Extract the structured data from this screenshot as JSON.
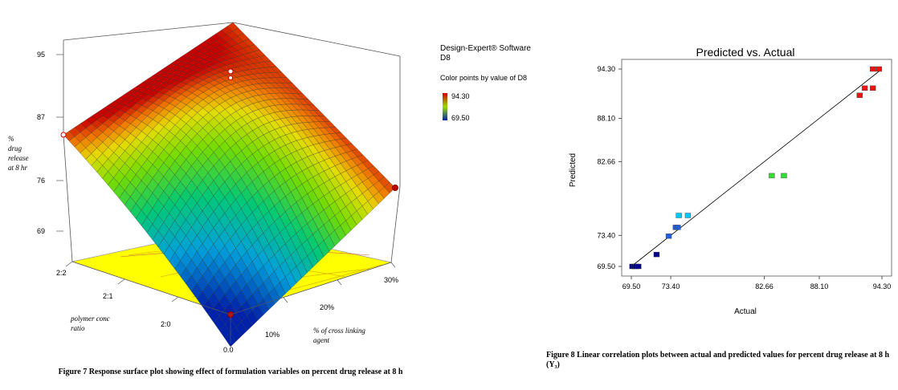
{
  "figure7": {
    "caption": "Figure 7 Response surface plot showing effect of formulation variables on percent drug release at 8 h",
    "software_label": "Design-Expert® Software",
    "response_name": "D8",
    "color_note": "Color points by value of D8",
    "color_max": "94.30",
    "color_min": "69.50",
    "colors": {
      "high": "#cc0000",
      "mid": "#7fd400",
      "low": "#0022aa",
      "floor": "#ffff00"
    },
    "z_axis": {
      "label": [
        "%",
        "drug",
        "release",
        "at 8 hr"
      ],
      "ticks": [
        "95",
        "87",
        "76",
        "69"
      ]
    },
    "x_axis": {
      "label": [
        "polymer conc",
        "ratio"
      ],
      "ticks": [
        "2:2",
        "2:1",
        "2:0"
      ]
    },
    "y_axis": {
      "label": [
        "% of cross linking",
        "agent"
      ],
      "ticks": [
        "0.0",
        "10%",
        "20%",
        "30%"
      ]
    }
  },
  "figure8": {
    "caption": "Figure 8 Linear correlation plots between actual and predicted values for percent drug release at 8 h (Y₃)",
    "chart_data": {
      "type": "scatter",
      "title": "Predicted vs. Actual",
      "xlabel": "Actual",
      "ylabel": "Predicted",
      "xlim": [
        69.5,
        94.3
      ],
      "ylim": [
        69.5,
        94.3
      ],
      "xticks": [
        "69.50",
        "73.40",
        "82.66",
        "88.10",
        "94.30"
      ],
      "yticks": [
        "69.50",
        "73.40",
        "82.66",
        "88.10",
        "94.30"
      ],
      "points": [
        {
          "x": 69.6,
          "y": 69.5
        },
        {
          "x": 69.8,
          "y": 69.5
        },
        {
          "x": 70.0,
          "y": 69.5
        },
        {
          "x": 70.2,
          "y": 69.5
        },
        {
          "x": 72.0,
          "y": 71.0
        },
        {
          "x": 73.2,
          "y": 73.3
        },
        {
          "x": 73.9,
          "y": 74.4
        },
        {
          "x": 74.1,
          "y": 74.4
        },
        {
          "x": 74.2,
          "y": 75.9
        },
        {
          "x": 75.1,
          "y": 75.9
        },
        {
          "x": 83.4,
          "y": 80.9
        },
        {
          "x": 84.6,
          "y": 80.9
        },
        {
          "x": 92.1,
          "y": 91.0
        },
        {
          "x": 92.6,
          "y": 91.9
        },
        {
          "x": 93.4,
          "y": 91.9
        },
        {
          "x": 93.4,
          "y": 94.3
        },
        {
          "x": 94.0,
          "y": 94.3
        }
      ],
      "fit_line": [
        [
          69.5,
          69.5
        ],
        [
          94.3,
          94.3
        ]
      ],
      "colors": [
        "#00008b",
        "#0000ff",
        "#00c8ff",
        "#00ff40",
        "#ff0000"
      ]
    }
  }
}
